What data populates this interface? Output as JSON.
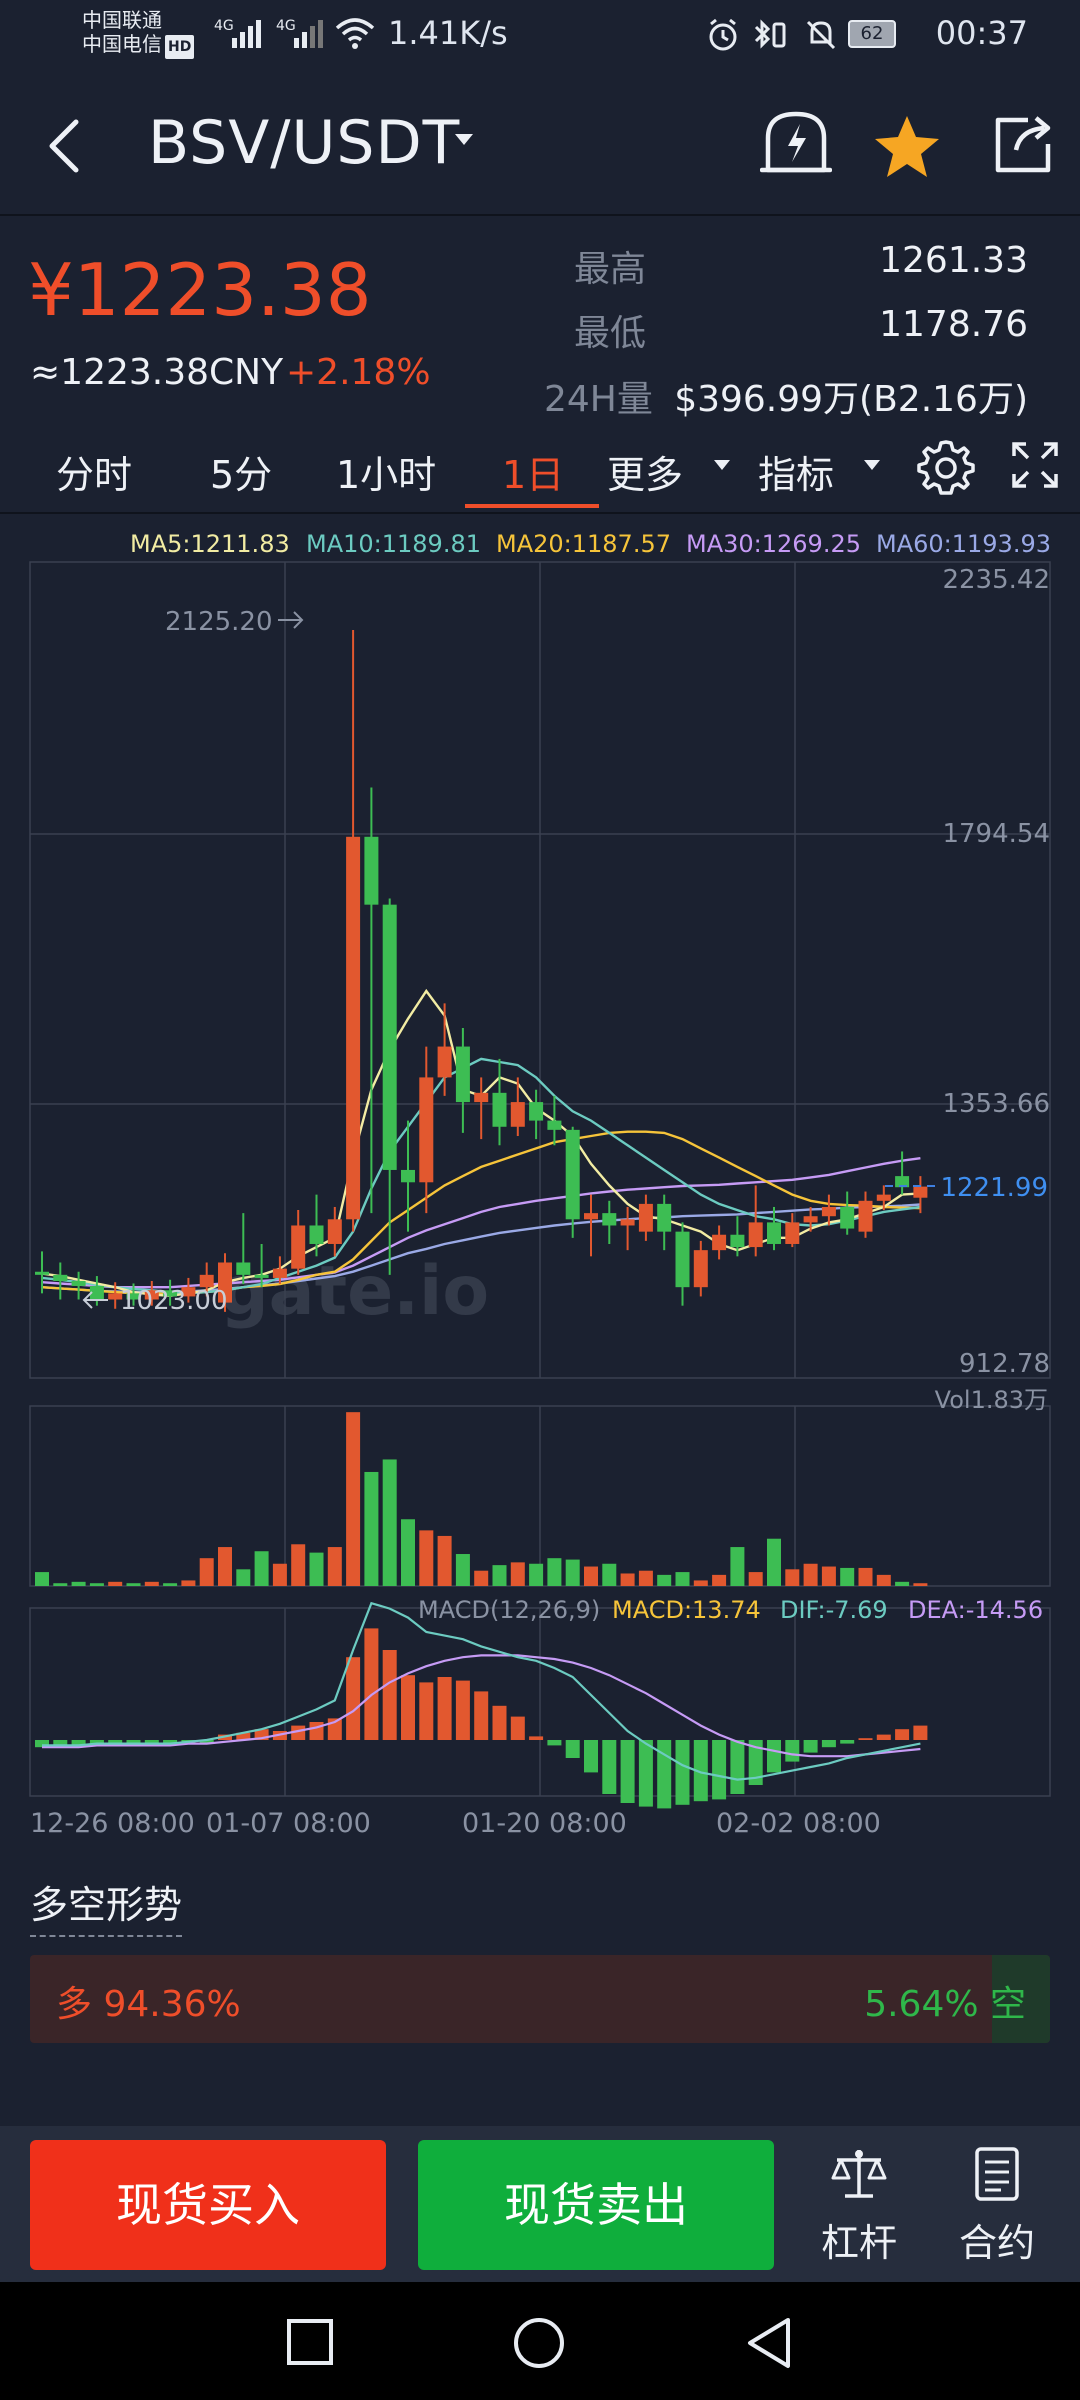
{
  "status_bar": {
    "carrier1": "中国联通",
    "carrier2": "中国电信",
    "hd": "HD",
    "net1": "4G",
    "net2": "4G",
    "speed": "1.41K/s",
    "battery": "62",
    "time": "00:37"
  },
  "header": {
    "pair": "BSV/USDT",
    "icons": [
      "back-icon",
      "price-alert-icon",
      "star-icon",
      "share-icon"
    ]
  },
  "price": {
    "current": "¥1223.38",
    "cny": "≈1223.38CNY",
    "change": "+2.18%",
    "high_label": "最高",
    "high": "1261.33",
    "low_label": "最低",
    "low": "1178.76",
    "vol_label": "24H量",
    "vol": "$396.99万(B2.16万)"
  },
  "tabs": {
    "items": [
      "分时",
      "5分",
      "1小时",
      "1日",
      "更多",
      "指标"
    ],
    "active": "1日"
  },
  "ma_legend": {
    "ma5": "MA5:1211.83",
    "ma10": "MA10:1189.81",
    "ma20": "MA20:1187.57",
    "ma30": "MA30:1269.25",
    "ma60": "MA60:1193.93"
  },
  "chart_data": {
    "type": "candlestick",
    "price_axis": [
      "2235.42",
      "1794.54",
      "1353.66",
      "912.78"
    ],
    "current_price_label": "1221.99",
    "max_label": "2125.20",
    "min_label": "1023.00",
    "watermark": "gate.io",
    "vol_label": "Vol1.83万",
    "macd_label": "MACD(12,26,9)",
    "macd_value": "MACD:13.74",
    "dif_value": "DIF:-7.69",
    "dea_value": "DEA:-14.56",
    "x_labels": [
      "12-26 08:00",
      "01-07 08:00",
      "01-20 08:00",
      "02-02 08:00"
    ],
    "colors": {
      "up": "#e2582f",
      "down": "#3dbd53",
      "ma5": "#f2eca3",
      "ma10": "#6ccbc1",
      "ma20": "#f6c43a",
      "ma30": "#c69bf5",
      "ma60": "#9aa9e6"
    },
    "candles": [
      {
        "o": 1085,
        "c": 1080,
        "h": 1118,
        "l": 1050
      },
      {
        "o": 1080,
        "c": 1070,
        "h": 1100,
        "l": 1040
      },
      {
        "o": 1070,
        "c": 1062,
        "h": 1085,
        "l": 1040
      },
      {
        "o": 1062,
        "c": 1040,
        "h": 1078,
        "l": 1030
      },
      {
        "o": 1040,
        "c": 1050,
        "h": 1068,
        "l": 1025
      },
      {
        "o": 1050,
        "c": 1040,
        "h": 1066,
        "l": 1030
      },
      {
        "o": 1040,
        "c": 1055,
        "h": 1070,
        "l": 1030
      },
      {
        "o": 1055,
        "c": 1045,
        "h": 1072,
        "l": 1030
      },
      {
        "o": 1045,
        "c": 1060,
        "h": 1075,
        "l": 1035
      },
      {
        "o": 1060,
        "c": 1080,
        "h": 1100,
        "l": 1045
      },
      {
        "o": 1035,
        "c": 1100,
        "h": 1115,
        "l": 1020
      },
      {
        "o": 1100,
        "c": 1080,
        "h": 1180,
        "l": 1065
      },
      {
        "o": 1080,
        "c": 1075,
        "h": 1130,
        "l": 1060
      },
      {
        "o": 1075,
        "c": 1090,
        "h": 1110,
        "l": 1065
      },
      {
        "o": 1090,
        "c": 1160,
        "h": 1185,
        "l": 1080
      },
      {
        "o": 1160,
        "c": 1130,
        "h": 1210,
        "l": 1110
      },
      {
        "o": 1130,
        "c": 1170,
        "h": 1190,
        "l": 1110
      },
      {
        "o": 1170,
        "c": 1790,
        "h": 2125.2,
        "l": 1150
      },
      {
        "o": 1790,
        "c": 1680,
        "h": 1870,
        "l": 1180
      },
      {
        "o": 1680,
        "c": 1250,
        "h": 1690,
        "l": 1080
      },
      {
        "o": 1250,
        "c": 1230,
        "h": 1330,
        "l": 1150
      },
      {
        "o": 1230,
        "c": 1400,
        "h": 1450,
        "l": 1180
      },
      {
        "o": 1400,
        "c": 1450,
        "h": 1520,
        "l": 1370
      },
      {
        "o": 1450,
        "c": 1360,
        "h": 1480,
        "l": 1310
      },
      {
        "o": 1360,
        "c": 1375,
        "h": 1400,
        "l": 1300
      },
      {
        "o": 1375,
        "c": 1320,
        "h": 1430,
        "l": 1290
      },
      {
        "o": 1320,
        "c": 1360,
        "h": 1400,
        "l": 1305
      },
      {
        "o": 1360,
        "c": 1330,
        "h": 1380,
        "l": 1300
      },
      {
        "o": 1330,
        "c": 1315,
        "h": 1370,
        "l": 1290
      },
      {
        "o": 1315,
        "c": 1170,
        "h": 1320,
        "l": 1140
      },
      {
        "o": 1170,
        "c": 1180,
        "h": 1210,
        "l": 1110
      },
      {
        "o": 1180,
        "c": 1160,
        "h": 1200,
        "l": 1130
      },
      {
        "o": 1160,
        "c": 1170,
        "h": 1190,
        "l": 1120
      },
      {
        "o": 1150,
        "c": 1195,
        "h": 1210,
        "l": 1135
      },
      {
        "o": 1195,
        "c": 1150,
        "h": 1210,
        "l": 1120
      },
      {
        "o": 1150,
        "c": 1060,
        "h": 1165,
        "l": 1030
      },
      {
        "o": 1060,
        "c": 1120,
        "h": 1135,
        "l": 1045
      },
      {
        "o": 1120,
        "c": 1145,
        "h": 1160,
        "l": 1105
      },
      {
        "o": 1145,
        "c": 1125,
        "h": 1175,
        "l": 1110
      },
      {
        "o": 1125,
        "c": 1165,
        "h": 1225,
        "l": 1110
      },
      {
        "o": 1165,
        "c": 1130,
        "h": 1190,
        "l": 1120
      },
      {
        "o": 1130,
        "c": 1165,
        "h": 1180,
        "l": 1125
      },
      {
        "o": 1165,
        "c": 1175,
        "h": 1190,
        "l": 1150
      },
      {
        "o": 1175,
        "c": 1190,
        "h": 1210,
        "l": 1160
      },
      {
        "o": 1190,
        "c": 1155,
        "h": 1215,
        "l": 1145
      },
      {
        "o": 1150,
        "c": 1200,
        "h": 1215,
        "l": 1140
      },
      {
        "o": 1200,
        "c": 1210,
        "h": 1225,
        "l": 1185
      },
      {
        "o": 1240,
        "c": 1222,
        "h": 1280,
        "l": 1210
      },
      {
        "o": 1205,
        "c": 1223,
        "h": 1240,
        "l": 1180
      }
    ],
    "volume": [
      1.0,
      0.2,
      0.3,
      0.2,
      0.3,
      0.2,
      0.3,
      0.2,
      0.4,
      2.0,
      2.8,
      1.2,
      2.5,
      1.6,
      3.0,
      2.4,
      2.8,
      12.5,
      8.2,
      9.1,
      4.8,
      4.0,
      3.6,
      2.3,
      1.1,
      1.5,
      1.7,
      1.6,
      2.0,
      1.9,
      1.4,
      1.6,
      0.9,
      1.1,
      0.8,
      1.0,
      0.4,
      0.8,
      2.8,
      1.0,
      3.4,
      1.2,
      1.6,
      1.4,
      1.3,
      1.3,
      0.8,
      0.3,
      0.2
    ],
    "macd_hist": [
      -0.4,
      -0.3,
      -0.3,
      -0.2,
      -0.2,
      -0.3,
      -0.2,
      -0.3,
      -0.2,
      -0.2,
      0.3,
      0.4,
      0.6,
      0.5,
      0.8,
      1.0,
      1.2,
      4.6,
      6.2,
      5.0,
      3.6,
      3.2,
      3.5,
      3.3,
      2.7,
      1.9,
      1.3,
      0.2,
      -0.3,
      -1.0,
      -1.8,
      -3.0,
      -3.5,
      -3.7,
      -3.8,
      -3.6,
      -3.4,
      -3.3,
      -3.0,
      -2.5,
      -1.8,
      -1.2,
      -0.7,
      -0.4,
      -0.2,
      0.1,
      0.3,
      0.6,
      0.8
    ],
    "ma5": [
      1082,
      1078,
      1072,
      1066,
      1060,
      1052,
      1048,
      1046,
      1050,
      1055,
      1068,
      1075,
      1080,
      1090,
      1110,
      1125,
      1140,
      1270,
      1380,
      1445,
      1495,
      1540,
      1500,
      1380,
      1370,
      1400,
      1390,
      1350,
      1330,
      1305,
      1260,
      1225,
      1195,
      1175,
      1170,
      1160,
      1150,
      1130,
      1120,
      1130,
      1140,
      1140,
      1155,
      1165,
      1170,
      1180,
      1190,
      1210,
      1212
    ],
    "ma10": [
      1075,
      1072,
      1068,
      1064,
      1060,
      1057,
      1055,
      1052,
      1050,
      1052,
      1055,
      1060,
      1065,
      1075,
      1085,
      1095,
      1108,
      1150,
      1220,
      1280,
      1320,
      1360,
      1400,
      1415,
      1430,
      1425,
      1420,
      1400,
      1370,
      1345,
      1330,
      1310,
      1290,
      1270,
      1250,
      1230,
      1210,
      1195,
      1185,
      1175,
      1170,
      1162,
      1160,
      1162,
      1168,
      1175,
      1182,
      1186,
      1190
    ],
    "ma20": [
      1060,
      1058,
      1056,
      1054,
      1052,
      1050,
      1050,
      1050,
      1050,
      1052,
      1055,
      1060,
      1062,
      1065,
      1072,
      1080,
      1085,
      1105,
      1135,
      1165,
      1185,
      1205,
      1225,
      1240,
      1255,
      1265,
      1275,
      1285,
      1295,
      1300,
      1305,
      1310,
      1312,
      1312,
      1310,
      1300,
      1285,
      1270,
      1255,
      1240,
      1225,
      1210,
      1200,
      1195,
      1193,
      1192,
      1190,
      1189,
      1188
    ],
    "ma30": [
      1068,
      1066,
      1064,
      1062,
      1060,
      1060,
      1060,
      1060,
      1062,
      1064,
      1066,
      1068,
      1070,
      1072,
      1076,
      1080,
      1084,
      1095,
      1110,
      1125,
      1140,
      1152,
      1162,
      1172,
      1182,
      1190,
      1195,
      1200,
      1204,
      1208,
      1212,
      1215,
      1218,
      1220,
      1222,
      1224,
      1225,
      1226,
      1228,
      1230,
      1232,
      1234,
      1238,
      1242,
      1248,
      1254,
      1260,
      1265,
      1269
    ],
    "ma60": [
      1060,
      1058,
      1056,
      1054,
      1053,
      1052,
      1052,
      1052,
      1053,
      1055,
      1057,
      1060,
      1063,
      1066,
      1070,
      1074,
      1078,
      1085,
      1095,
      1105,
      1115,
      1122,
      1130,
      1136,
      1142,
      1148,
      1152,
      1156,
      1160,
      1163,
      1166,
      1168,
      1170,
      1172,
      1173,
      1175,
      1176,
      1177,
      1178,
      1180,
      1182,
      1184,
      1186,
      1187,
      1189,
      1190,
      1191,
      1192,
      1194
    ],
    "dif": [
      -0.3,
      -0.3,
      -0.3,
      -0.2,
      -0.2,
      -0.2,
      -0.2,
      -0.2,
      -0.1,
      0.0,
      0.2,
      0.4,
      0.6,
      0.9,
      1.3,
      1.7,
      2.2,
      5.0,
      7.6,
      7.3,
      6.8,
      6.0,
      5.8,
      5.6,
      5.2,
      4.9,
      4.6,
      4.4,
      4.0,
      3.5,
      2.5,
      1.5,
      0.5,
      -0.2,
      -0.8,
      -1.4,
      -1.8,
      -2.0,
      -2.2,
      -2.1,
      -1.9,
      -1.7,
      -1.5,
      -1.3,
      -1.0,
      -0.8,
      -0.6,
      -0.4,
      -0.2
    ],
    "dea": [
      -0.4,
      -0.4,
      -0.4,
      -0.3,
      -0.3,
      -0.3,
      -0.3,
      -0.3,
      -0.2,
      -0.2,
      -0.1,
      0.0,
      0.1,
      0.3,
      0.5,
      0.7,
      1.0,
      1.6,
      2.5,
      3.2,
      3.7,
      4.1,
      4.4,
      4.6,
      4.7,
      4.7,
      4.7,
      4.6,
      4.5,
      4.3,
      4.0,
      3.6,
      3.1,
      2.6,
      2.0,
      1.4,
      0.8,
      0.3,
      -0.1,
      -0.4,
      -0.6,
      -0.8,
      -0.9,
      -0.9,
      -0.9,
      -0.8,
      -0.7,
      -0.6,
      -0.5
    ]
  },
  "sentiment": {
    "title": "多空形势",
    "long_label": "多 94.36%",
    "short_label": "5.64% 空",
    "long_pct": 94.36,
    "short_pct": 5.64
  },
  "actions": {
    "buy": "现货买入",
    "sell": "现货卖出",
    "leverage": "杠杆",
    "contract": "合约"
  }
}
